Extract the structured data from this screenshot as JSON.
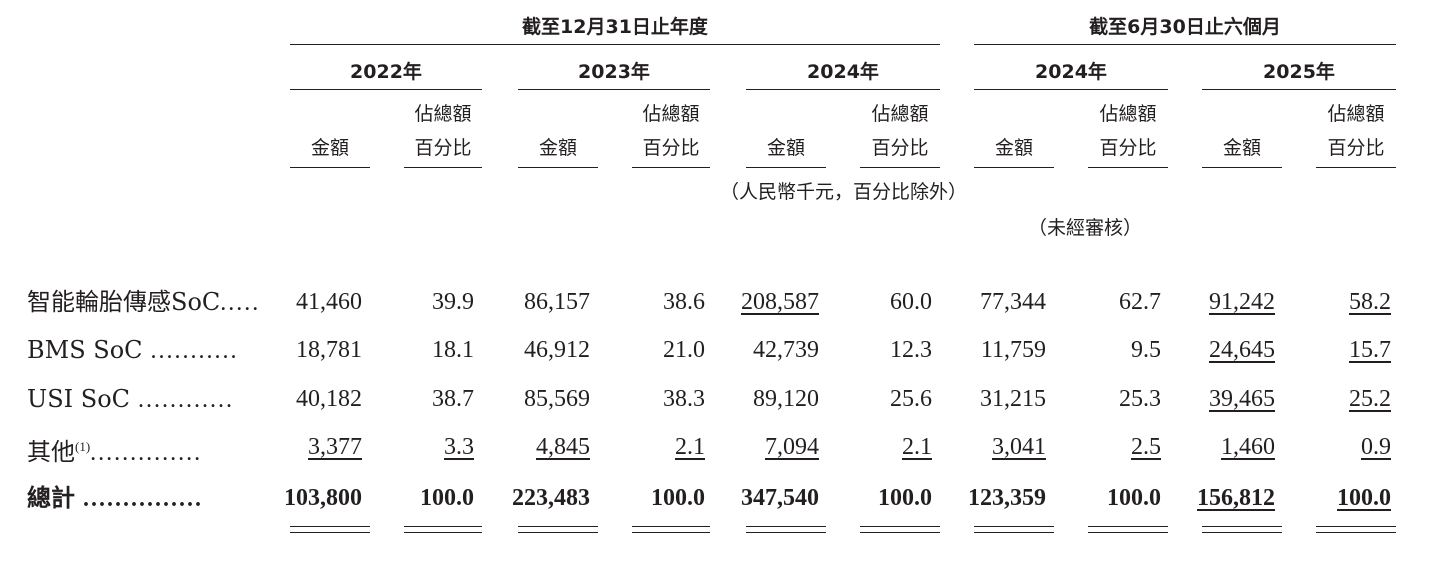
{
  "periods": {
    "annual": "截至12月31日止年度",
    "interim": "截至6月30日止六個月"
  },
  "years": [
    "2022年",
    "2023年",
    "2024年",
    "2024年",
    "2025年"
  ],
  "col_amount": "金額",
  "col_pct_line1": "佔總額",
  "col_pct_line2": "百分比",
  "unit_note": "（人民幣千元，百分比除外）",
  "unaudited_note": "（未經審核）",
  "rows": [
    {
      "label": "智能輪胎傳感SoC",
      "dots": ".....",
      "sup": "",
      "values": [
        "41,460",
        "39.9",
        "86,157",
        "38.6",
        "208,587",
        "60.0",
        "77,344",
        "62.7",
        "91,242",
        "58.2"
      ]
    },
    {
      "label": "BMS SoC",
      "dots": " ...........",
      "sup": "",
      "values": [
        "18,781",
        "18.1",
        "46,912",
        "21.0",
        "42,739",
        "12.3",
        "11,759",
        "9.5",
        "24,645",
        "15.7"
      ]
    },
    {
      "label": "USI SoC",
      "dots": " ............",
      "sup": "",
      "values": [
        "40,182",
        "38.7",
        "85,569",
        "38.3",
        "89,120",
        "25.6",
        "31,215",
        "25.3",
        "39,465",
        "25.2"
      ]
    },
    {
      "label": "其他",
      "dots": "..............",
      "sup": "(1)",
      "values": [
        "3,377",
        "3.3",
        "4,845",
        "2.1",
        "7,094",
        "2.1",
        "3,041",
        "2.5",
        "1,460",
        "0.9"
      ]
    }
  ],
  "total": {
    "label": "總計",
    "dots": " ...............",
    "values": [
      "103,800",
      "100.0",
      "223,483",
      "100.0",
      "347,540",
      "100.0",
      "123,359",
      "100.0",
      "156,812",
      "100.0"
    ]
  }
}
